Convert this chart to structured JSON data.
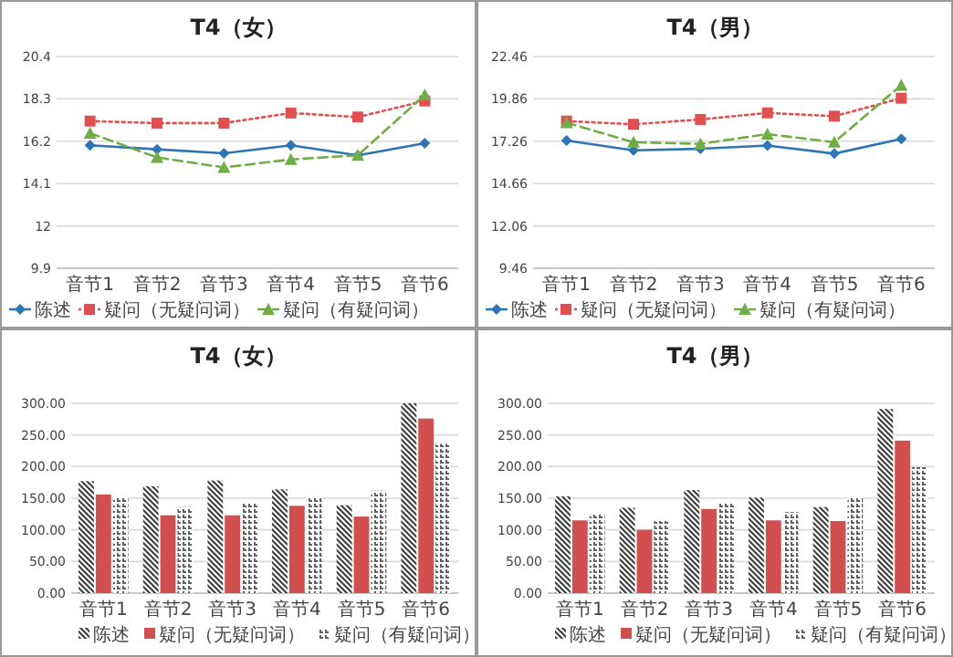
{
  "chart_data": [
    {
      "type": "line",
      "title": "T4（女）",
      "categories": [
        "音节1",
        "音节2",
        "音节3",
        "音节4",
        "音节5",
        "音节6"
      ],
      "ylim": [
        9.9,
        20.4
      ],
      "yticks": [
        9.9,
        12,
        14.1,
        16.2,
        18.3,
        20.4
      ],
      "grid": "y",
      "legend": "bottom",
      "series": [
        {
          "name": "陈述",
          "color": "#2e75b6",
          "marker": "diamond",
          "line_style": "solid",
          "values": [
            16.0,
            15.8,
            15.6,
            16.0,
            15.5,
            16.1
          ]
        },
        {
          "name": "疑问（无疑问词）",
          "color": "#e05050",
          "marker": "square",
          "line_style": "dotted",
          "values": [
            17.2,
            17.1,
            17.1,
            17.6,
            17.4,
            18.2
          ]
        },
        {
          "name": "疑问（有疑问词）",
          "color": "#70ad47",
          "marker": "triangle",
          "line_style": "dashed",
          "values": [
            16.6,
            15.4,
            14.9,
            15.3,
            15.5,
            18.5
          ]
        }
      ]
    },
    {
      "type": "line",
      "title": "T4（男）",
      "categories": [
        "音节1",
        "音节2",
        "音节3",
        "音节4",
        "音节5",
        "音节6"
      ],
      "ylim": [
        9.46,
        22.46
      ],
      "yticks": [
        9.46,
        12.06,
        14.66,
        17.26,
        19.86,
        22.46
      ],
      "grid": "y",
      "legend": "bottom",
      "series": [
        {
          "name": "陈述",
          "color": "#2e75b6",
          "marker": "diamond",
          "line_style": "solid",
          "values": [
            17.3,
            16.7,
            16.8,
            17.0,
            16.5,
            17.4
          ]
        },
        {
          "name": "疑问（无疑问词）",
          "color": "#e05050",
          "marker": "square",
          "line_style": "dotted",
          "values": [
            18.5,
            18.3,
            18.6,
            19.0,
            18.8,
            19.9
          ]
        },
        {
          "name": "疑问（有疑问词）",
          "color": "#70ad47",
          "marker": "triangle",
          "line_style": "dashed",
          "values": [
            18.4,
            17.2,
            17.1,
            17.7,
            17.2,
            20.7
          ]
        }
      ]
    },
    {
      "type": "bar",
      "title": "T4（女）",
      "categories": [
        "音节1",
        "音节2",
        "音节3",
        "音节4",
        "音节5",
        "音节6"
      ],
      "ylim": [
        0,
        300
      ],
      "yticks": [
        {
          "value": 0,
          "label": "0.00"
        },
        {
          "value": 50,
          "label": "50.00"
        },
        {
          "value": 100,
          "label": "100.00"
        },
        {
          "value": 150,
          "label": "150.00"
        },
        {
          "value": 200,
          "label": "200.00"
        },
        {
          "value": 250,
          "label": "250.00"
        },
        {
          "value": 300,
          "label": "300.00"
        }
      ],
      "grid": "y",
      "legend": "bottom",
      "series": [
        {
          "name": "陈述",
          "color": "#404040",
          "values": [
            177,
            169,
            178,
            164,
            139,
            300
          ]
        },
        {
          "name": "疑问（无疑问词）",
          "color": "#d0504f",
          "values": [
            156,
            123,
            123,
            138,
            121,
            276
          ]
        },
        {
          "name": "疑问（有疑问词）",
          "color": "#606060",
          "values": [
            153,
            136,
            144,
            153,
            162,
            236
          ]
        }
      ]
    },
    {
      "type": "bar",
      "title": "T4（男）",
      "categories": [
        "音节1",
        "音节2",
        "音节3",
        "音节4",
        "音节5",
        "音节6"
      ],
      "ylim": [
        0,
        300
      ],
      "yticks": [
        {
          "value": 0,
          "label": "0.00"
        },
        {
          "value": 50,
          "label": "50.00"
        },
        {
          "value": 100,
          "label": "100.00"
        },
        {
          "value": 150,
          "label": "150.00"
        },
        {
          "value": 200,
          "label": "200.00"
        },
        {
          "value": 250,
          "label": "250.00"
        },
        {
          "value": 300,
          "label": "300.00"
        }
      ],
      "grid": "y",
      "legend": "bottom",
      "series": [
        {
          "name": "陈述",
          "color": "#404040",
          "values": [
            153,
            135,
            163,
            151,
            136,
            291
          ]
        },
        {
          "name": "疑问（无疑问词）",
          "color": "#d0504f",
          "values": [
            115,
            100,
            133,
            115,
            114,
            241
          ]
        },
        {
          "name": "疑问（有疑问词）",
          "color": "#606060",
          "values": [
            126,
            114,
            143,
            128,
            152,
            199
          ]
        }
      ]
    }
  ]
}
